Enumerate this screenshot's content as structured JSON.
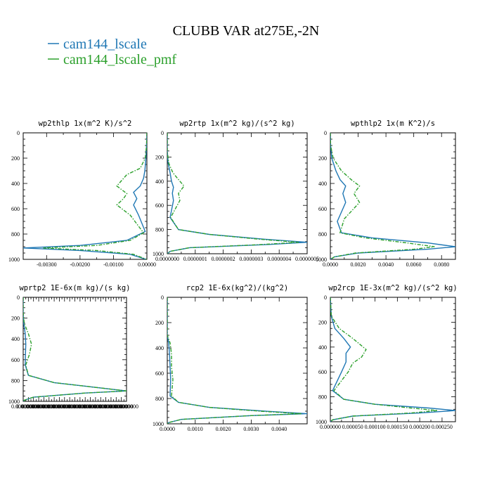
{
  "figure": {
    "title": "CLUBB VAR at275E,-2N",
    "legend": [
      {
        "label": "cam144_lscale",
        "color": "#1f77b4",
        "dash": "solid"
      },
      {
        "label": "cam144_lscale_pmf",
        "color": "#2ca02c",
        "dash": "dashdot"
      }
    ]
  },
  "chart_data": [
    {
      "type": "line",
      "title": "wp2thlp  1x(m^2 K)/s^2",
      "xlim": [
        -0.0037,
        0.0
      ],
      "ylim": [
        1000,
        0
      ],
      "xticks": [
        -0.003,
        -0.002,
        -0.001,
        0.0
      ],
      "xtick_labels": [
        "-0.00300",
        "-0.00200",
        "-0.00100",
        "0.00000"
      ],
      "yticks": [
        0,
        200,
        400,
        600,
        800,
        1000
      ],
      "ytick_labels": [
        "0",
        "200",
        "400",
        "600",
        "800",
        "1000"
      ],
      "series": [
        {
          "name": "cam144_lscale",
          "color": "#1f77b4",
          "x": [
            0,
            -1e-05,
            -3e-05,
            -6e-05,
            -0.0001,
            -0.0002,
            -0.0004,
            -0.0003,
            -0.0004,
            -0.00025,
            -5e-05,
            -0.0006,
            -0.002,
            -0.0037,
            -0.002,
            -0.0005,
            -2e-05
          ],
          "y": [
            0,
            100,
            200,
            300,
            360,
            420,
            470,
            520,
            570,
            650,
            780,
            850,
            890,
            910,
            930,
            960,
            1000
          ]
        },
        {
          "name": "cam144_lscale_pmf",
          "color": "#2ca02c",
          "x": [
            0,
            -1e-05,
            -5e-05,
            -0.0002,
            -0.0006,
            -0.0009,
            -0.0006,
            -0.0007,
            -0.0009,
            -0.0005,
            -0.0001,
            -0.0005,
            -0.0015,
            -0.0031,
            -0.0015,
            -0.0004,
            -1e-05
          ],
          "y": [
            0,
            100,
            200,
            280,
            330,
            420,
            480,
            520,
            570,
            650,
            790,
            850,
            890,
            910,
            930,
            960,
            1000
          ]
        }
      ]
    },
    {
      "type": "line",
      "title": "wp2rtp  1x(m^2 kg)/(s^2 kg)",
      "xlim": [
        0.0,
        5e-07
      ],
      "ylim": [
        1000,
        0
      ],
      "xticks": [
        0.0,
        1e-07,
        2e-07,
        3e-07,
        4e-07,
        5e-07
      ],
      "xtick_labels": [
        "0.0000000",
        "0.0000001",
        "0.0000002",
        "0.0000003",
        "0.0000004",
        "0.0000005"
      ],
      "yticks": [
        0,
        200,
        400,
        600,
        800,
        1000
      ],
      "ytick_labels": [
        "0",
        "200",
        "400",
        "600",
        "800",
        "1000"
      ],
      "series": [
        {
          "name": "cam144_lscale",
          "color": "#1f77b4",
          "x": [
            0,
            0,
            3e-09,
            1e-08,
            1.5e-08,
            2.2e-08,
            1.8e-08,
            2.2e-08,
            1e-08,
            4e-08,
            1.5e-07,
            3.5e-07,
            5e-07,
            3.5e-07,
            8e-08,
            1e-08,
            0
          ],
          "y": [
            0,
            150,
            250,
            330,
            400,
            450,
            500,
            560,
            700,
            800,
            840,
            880,
            905,
            925,
            950,
            980,
            1000
          ]
        },
        {
          "name": "cam144_lscale_pmf",
          "color": "#2ca02c",
          "x": [
            0,
            0,
            5e-09,
            2e-08,
            4.5e-08,
            6e-08,
            4e-08,
            4.5e-08,
            1.2e-08,
            4e-08,
            1.5e-07,
            3.3e-07,
            4.7e-07,
            3.3e-07,
            8e-08,
            1e-08,
            0
          ],
          "y": [
            0,
            150,
            250,
            330,
            400,
            440,
            500,
            560,
            700,
            800,
            840,
            880,
            905,
            925,
            950,
            980,
            1000
          ]
        }
      ]
    },
    {
      "type": "line",
      "title": "wpthlp2  1x(m K^2)/s",
      "xlim": [
        0.0,
        0.009
      ],
      "ylim": [
        1000,
        0
      ],
      "xticks": [
        0.0,
        0.002,
        0.004,
        0.006,
        0.008
      ],
      "xtick_labels": [
        "0.0000",
        "0.0020",
        "0.0040",
        "0.0060",
        "0.0080"
      ],
      "yticks": [
        0,
        200,
        400,
        600,
        800,
        1000
      ],
      "ytick_labels": [
        "0",
        "200",
        "400",
        "600",
        "800",
        "1000"
      ],
      "series": [
        {
          "name": "cam144_lscale",
          "color": "#1f77b4",
          "x": [
            0,
            2e-05,
            0.0001,
            0.0004,
            0.0007,
            0.0011,
            0.0009,
            0.0011,
            0.0005,
            0.0008,
            0.003,
            0.007,
            0.009,
            0.007,
            0.002,
            0.0003,
            0
          ],
          "y": [
            0,
            100,
            200,
            300,
            370,
            420,
            480,
            550,
            700,
            790,
            830,
            870,
            900,
            920,
            950,
            980,
            1000
          ]
        },
        {
          "name": "cam144_lscale_pmf",
          "color": "#2ca02c",
          "x": [
            0,
            2e-05,
            0.0002,
            0.0008,
            0.0015,
            0.0021,
            0.0017,
            0.0021,
            0.001,
            0.0007,
            0.0025,
            0.0055,
            0.0075,
            0.006,
            0.0018,
            0.0003,
            0
          ],
          "y": [
            0,
            100,
            200,
            300,
            370,
            420,
            480,
            550,
            680,
            790,
            830,
            870,
            900,
            920,
            950,
            980,
            1000
          ]
        }
      ]
    },
    {
      "type": "line",
      "title": "wprtp2  1E-6x(m kg)/(s kg)",
      "xlim": [
        0.0,
        1.0
      ],
      "ylim": [
        1000,
        0
      ],
      "xticks": [
        0.0,
        0.05,
        0.1,
        0.15,
        0.2,
        0.25,
        0.3,
        0.35,
        0.4,
        0.45,
        0.5,
        0.55,
        0.6,
        0.65,
        0.7,
        0.75,
        0.8,
        0.85,
        0.9,
        0.95,
        1.0
      ],
      "xtick_labels": [
        "0.0000000",
        "0.0000000",
        "0.0000000",
        "0.0000000",
        "0.0000000",
        "0.0000000",
        "0.0000000",
        "0.0000000",
        "0.0000000",
        "0.0000000",
        "0.0000000",
        "0.0000000",
        "0.0000000",
        "0.0000000",
        "0.0000000",
        "0.0000000",
        "0.0000000",
        "0.0000000",
        "0.0000000",
        "0.0000000",
        "0.0000000"
      ],
      "yticks": [
        0,
        200,
        400,
        600,
        800,
        1000
      ],
      "ytick_labels": [
        "0",
        "200",
        "400",
        "600",
        "800",
        "1000"
      ],
      "series": [
        {
          "name": "cam144_lscale",
          "color": "#1f77b4",
          "x": [
            0,
            0,
            0.005,
            0.02,
            0.025,
            0.022,
            0.02,
            0.05,
            0.3,
            0.65,
            1.0,
            0.6,
            0.1,
            0.01,
            0
          ],
          "y": [
            0,
            150,
            250,
            350,
            450,
            550,
            650,
            750,
            820,
            860,
            900,
            920,
            960,
            990,
            1000
          ]
        },
        {
          "name": "cam144_lscale_pmf",
          "color": "#2ca02c",
          "x": [
            0,
            0,
            0.01,
            0.05,
            0.08,
            0.06,
            0.025,
            0.05,
            0.3,
            0.65,
            1.0,
            0.6,
            0.1,
            0.01,
            0
          ],
          "y": [
            0,
            150,
            250,
            350,
            450,
            550,
            650,
            750,
            820,
            860,
            900,
            920,
            960,
            990,
            1000
          ]
        }
      ]
    },
    {
      "type": "line",
      "title": "rcp2  1E-6x(kg^2)/(kg^2)",
      "xlim": [
        0.0,
        0.005
      ],
      "ylim": [
        1000,
        0
      ],
      "xticks": [
        0.0,
        0.001,
        0.002,
        0.003,
        0.004
      ],
      "xtick_labels": [
        "0.0000",
        "0.0010",
        "0.0020",
        "0.0030",
        "0.0040"
      ],
      "yticks": [
        0,
        200,
        400,
        600,
        800,
        1000
      ],
      "ytick_labels": [
        "0",
        "200",
        "400",
        "600",
        "800",
        "1000"
      ],
      "series": [
        {
          "name": "cam144_lscale",
          "color": "#1f77b4",
          "x": [
            0,
            0,
            5e-05,
            8e-05,
            0.0001,
            0.00012,
            0.0001,
            0.0004,
            0.0015,
            0.0035,
            0.005,
            0.003,
            0.0005,
            5e-05,
            0
          ],
          "y": [
            0,
            300,
            360,
            450,
            550,
            650,
            780,
            830,
            870,
            900,
            920,
            935,
            965,
            990,
            1000
          ]
        },
        {
          "name": "cam144_lscale_pmf",
          "color": "#2ca02c",
          "x": [
            0,
            0,
            0.0001,
            0.00015,
            0.00015,
            0.0002,
            0.00015,
            0.0004,
            0.0015,
            0.0033,
            0.0048,
            0.003,
            0.0005,
            5e-05,
            0
          ],
          "y": [
            0,
            300,
            360,
            450,
            550,
            650,
            780,
            830,
            870,
            900,
            920,
            935,
            965,
            990,
            1000
          ]
        }
      ]
    },
    {
      "type": "line",
      "title": "wp2rcp  1E-3x(m^2 kg)/(s^2 kg)",
      "xlim": [
        0.0,
        0.00028
      ],
      "ylim": [
        1000,
        0
      ],
      "xticks": [
        0.0,
        5e-05,
        0.0001,
        0.00015,
        0.0002,
        0.00025
      ],
      "xtick_labels": [
        "0.000000",
        "0.000050",
        "0.000100",
        "0.000150",
        "0.000200",
        "0.000250"
      ],
      "yticks": [
        0,
        200,
        400,
        600,
        800,
        1000
      ],
      "ytick_labels": [
        "0",
        "200",
        "400",
        "600",
        "800",
        "1000"
      ],
      "series": [
        {
          "name": "cam144_lscale",
          "color": "#1f77b4",
          "x": [
            0,
            2e-06,
            1e-05,
            3e-05,
            4.5e-05,
            3.5e-05,
            3.5e-05,
            2.5e-05,
            5e-06,
            3e-05,
            0.0001,
            0.00022,
            0.00028,
            0.0002,
            5e-05,
            5e-06,
            0
          ],
          "y": [
            0,
            150,
            250,
            330,
            400,
            450,
            520,
            600,
            750,
            820,
            860,
            890,
            910,
            930,
            955,
            985,
            1000
          ]
        },
        {
          "name": "cam144_lscale_pmf",
          "color": "#2ca02c",
          "x": [
            0,
            2e-06,
            2e-05,
            5e-05,
            8e-05,
            7e-05,
            5e-05,
            4e-05,
            8e-06,
            3e-05,
            0.0001,
            0.00018,
            0.00024,
            0.00018,
            5e-05,
            5e-06,
            0
          ],
          "y": [
            0,
            150,
            250,
            330,
            420,
            480,
            530,
            600,
            750,
            820,
            860,
            890,
            910,
            930,
            955,
            985,
            1000
          ]
        }
      ]
    }
  ]
}
